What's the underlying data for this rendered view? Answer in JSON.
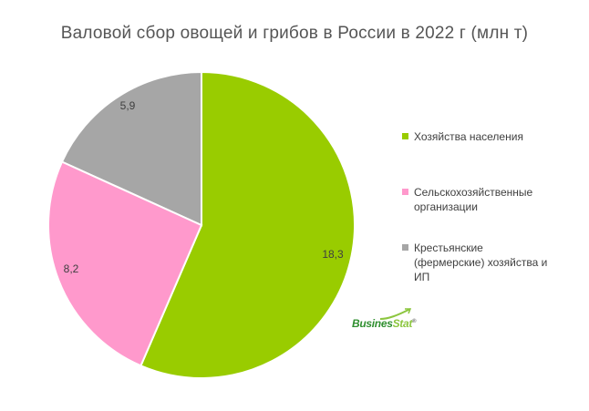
{
  "chart_data": {
    "type": "pie",
    "title": "Валовой сбор овощей и грибов в России в 2022 г (млн т)",
    "categories": [
      "Хозяйства населения",
      "Сельскохозяйственные организации",
      "Крестьянские (фермерские) хозяйства и ИП"
    ],
    "values": [
      18.3,
      8.2,
      5.9
    ],
    "value_labels": [
      "18,3",
      "8,2",
      "5,9"
    ],
    "colors": [
      "#99cc00",
      "#ff99cc",
      "#a6a6a6"
    ],
    "legend_position": "right",
    "legend": [
      {
        "lines": [
          "Хозяйства населения"
        ]
      },
      {
        "lines": [
          "Сельскохозяйственные",
          "организации"
        ]
      },
      {
        "lines": [
          "Крестьянские",
          "(фермерские) хозяйства и",
          "ИП"
        ]
      }
    ]
  },
  "watermark": {
    "text_part1": "Busines",
    "text_part2": "Stat",
    "mark": "®"
  }
}
